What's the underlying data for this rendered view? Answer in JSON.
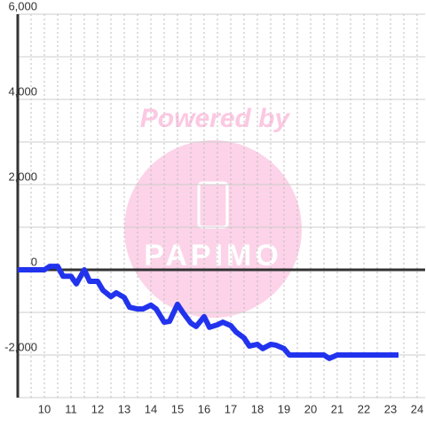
{
  "chart_data": {
    "type": "line",
    "watermark": {
      "text": "Powered by",
      "logo": "PAPIMO"
    },
    "x": [
      9,
      10,
      10.2,
      10.5,
      10.7,
      11,
      11.2,
      11.5,
      11.7,
      12,
      12.2,
      12.5,
      12.7,
      13,
      13.2,
      13.5,
      13.7,
      14,
      14.2,
      14.5,
      14.7,
      15,
      15.2,
      15.5,
      15.7,
      16,
      16.2,
      16.5,
      16.7,
      17,
      17.2,
      17.5,
      17.7,
      18,
      18.2,
      18.5,
      18.7,
      19,
      19.2,
      20.5,
      20.7,
      21,
      23.3
    ],
    "series": [
      {
        "color": "#2233ee",
        "values": [
          0,
          0,
          80,
          80,
          -150,
          -150,
          -330,
          0,
          -270,
          -270,
          -480,
          -630,
          -540,
          -650,
          -880,
          -920,
          -920,
          -830,
          -920,
          -1230,
          -1210,
          -810,
          -1000,
          -1250,
          -1330,
          -1100,
          -1350,
          -1290,
          -1230,
          -1310,
          -1460,
          -1600,
          -1790,
          -1750,
          -1850,
          -1750,
          -1770,
          -1850,
          -2000,
          -2000,
          -2080,
          -2000,
          -2000
        ]
      }
    ],
    "xlim": [
      9,
      24.3
    ],
    "ylim": [
      -3000,
      6000
    ],
    "xticks": [
      10,
      11,
      12,
      13,
      14,
      15,
      16,
      17,
      18,
      19,
      20,
      21,
      22,
      23,
      24
    ],
    "x_minor_gridlines": [
      9.5,
      10.5,
      11.5,
      12.5,
      13.5,
      14.5,
      15.5,
      16.5,
      17.5,
      18.5,
      19.5,
      20.5,
      21.5,
      22.5,
      23.5
    ],
    "yticks": [
      {
        "value": 6000,
        "label": "6,000"
      },
      {
        "value": 4000,
        "label": "4,000"
      },
      {
        "value": 2000,
        "label": "2,000"
      },
      0,
      {
        "value": -2000,
        "label": "-2,000"
      }
    ],
    "y_minor_gridlines": [
      5000,
      3000,
      1000,
      -1000,
      -3000
    ],
    "grid": true
  }
}
